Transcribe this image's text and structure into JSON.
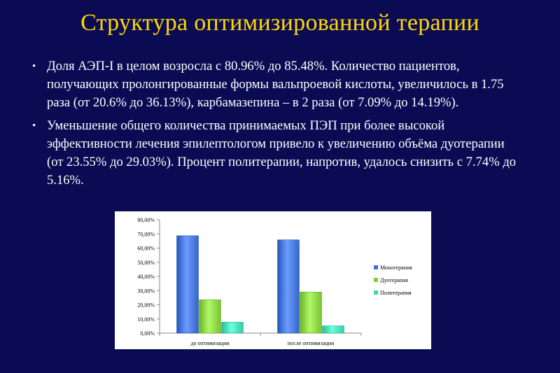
{
  "slide": {
    "title": "Структура оптимизированной терапии",
    "bullets": [
      "Доля АЭП-I в целом возросла с 80.96% до 85.48%. Количество пациентов, получающих пролонгированные формы вальпроевой кислоты, увеличилось в 1.75 раза (от 20.6% до 36.13%), карбамазепина – в 2 раза (от 7.09% до 14.19%).",
      "Уменьшение общего количества принимаемых ПЭП при более высокой эффективности лечения эпилептологом привело к увеличению объёма дуотерапии (от 23.55% до 29.03%). Процент политерапии, напротив, удалось снизить с 7.74% до 5.16%."
    ]
  },
  "chart_data": {
    "type": "bar",
    "title": "",
    "xlabel": "",
    "ylabel": "",
    "categories": [
      "до оптимизации",
      "после оптимизации"
    ],
    "series": [
      {
        "name": "Монотерапия",
        "values": [
          68.71,
          65.81
        ],
        "color": "#3f6fd2"
      },
      {
        "name": "Дуотерапия",
        "values": [
          23.55,
          29.03
        ],
        "color": "#84cc3c"
      },
      {
        "name": "Политерапия",
        "values": [
          7.74,
          5.16
        ],
        "color": "#3fd6b0"
      }
    ],
    "ylim": [
      0,
      80
    ],
    "yticks": [
      "0,00%",
      "10,00%",
      "20,00%",
      "30,00%",
      "40,00%",
      "50,00%",
      "60,00%",
      "70,00%",
      "80,00%"
    ],
    "grid": false,
    "legend": "right"
  }
}
